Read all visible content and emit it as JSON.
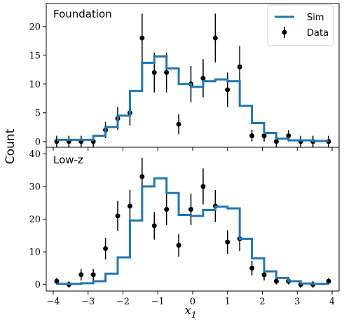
{
  "chart_data": {
    "type": "line",
    "xlabel": "x1",
    "xlabel_main": "x",
    "xlabel_sub": "1",
    "ylabel": "Count",
    "xlim": [
      -4.2,
      4.2
    ],
    "xticks": [
      -4,
      -3,
      -2,
      -1,
      0,
      1,
      2,
      3,
      4
    ],
    "legend": {
      "placement": "top-right",
      "sim_label": "Sim",
      "data_label": "Data"
    },
    "colors": {
      "sim": "#1f77b4",
      "data": "#000000"
    },
    "panels": [
      {
        "title": "Foundation",
        "ylim": [
          -1,
          24
        ],
        "yticks": [
          0,
          5,
          10,
          15,
          20
        ],
        "sim": {
          "edges": [
            -3.9,
            -3.55,
            -3.2,
            -2.85,
            -2.5,
            -2.15,
            -1.8,
            -1.45,
            -1.1,
            -0.75,
            -0.4,
            -0.05,
            0.3,
            0.65,
            1.0,
            1.35,
            1.7,
            2.05,
            2.4,
            2.75,
            3.1,
            3.45,
            3.9
          ],
          "values": [
            0.3,
            0.3,
            0.3,
            1.0,
            2.5,
            4.5,
            8.8,
            13.7,
            14.8,
            12.7,
            10.0,
            9.5,
            10.5,
            10.8,
            10.5,
            6.2,
            3.2,
            1.5,
            0.5,
            0.2,
            0.2,
            0.1
          ]
        },
        "data": {
          "x": [
            -3.9,
            -3.55,
            -3.2,
            -2.85,
            -2.5,
            -2.15,
            -1.8,
            -1.45,
            -1.1,
            -0.75,
            -0.4,
            -0.05,
            0.3,
            0.65,
            1.0,
            1.35,
            1.7,
            2.05,
            2.4,
            2.75,
            3.1,
            3.45,
            3.9
          ],
          "y": [
            0,
            0,
            0,
            0,
            2,
            4,
            5,
            18,
            12,
            12,
            3,
            10,
            11,
            18,
            9,
            13,
            1,
            1,
            0,
            1,
            0,
            0,
            0
          ]
        }
      },
      {
        "title": "Low-z",
        "ylim": [
          -2,
          42
        ],
        "yticks": [
          0,
          10,
          20,
          30,
          40
        ],
        "sim": {
          "edges": [
            -3.9,
            -3.55,
            -3.2,
            -2.85,
            -2.5,
            -2.15,
            -1.8,
            -1.45,
            -1.1,
            -0.75,
            -0.4,
            -0.05,
            0.3,
            0.65,
            1.0,
            1.35,
            1.7,
            2.05,
            2.4,
            2.75,
            3.1,
            3.45,
            3.9
          ],
          "values": [
            0.2,
            0.2,
            0.4,
            1.0,
            3.3,
            8.3,
            19.6,
            30.0,
            32.5,
            28.0,
            21.3,
            21.0,
            22.8,
            23.8,
            23.3,
            14.0,
            8.0,
            4.0,
            2.0,
            1.0,
            0.3,
            0.2
          ]
        },
        "data": {
          "x": [
            -3.9,
            -3.55,
            -3.2,
            -2.85,
            -2.5,
            -2.15,
            -1.8,
            -1.45,
            -1.1,
            -0.75,
            -0.4,
            -0.05,
            0.3,
            0.65,
            1.0,
            1.35,
            1.7,
            2.05,
            2.4,
            2.75,
            3.1,
            3.45,
            3.9
          ],
          "y": [
            1,
            0,
            3,
            3,
            11,
            21,
            24,
            33,
            18,
            23,
            12,
            23,
            30,
            24,
            13,
            14,
            5,
            3,
            1,
            1,
            0,
            0,
            1
          ]
        }
      }
    ]
  }
}
